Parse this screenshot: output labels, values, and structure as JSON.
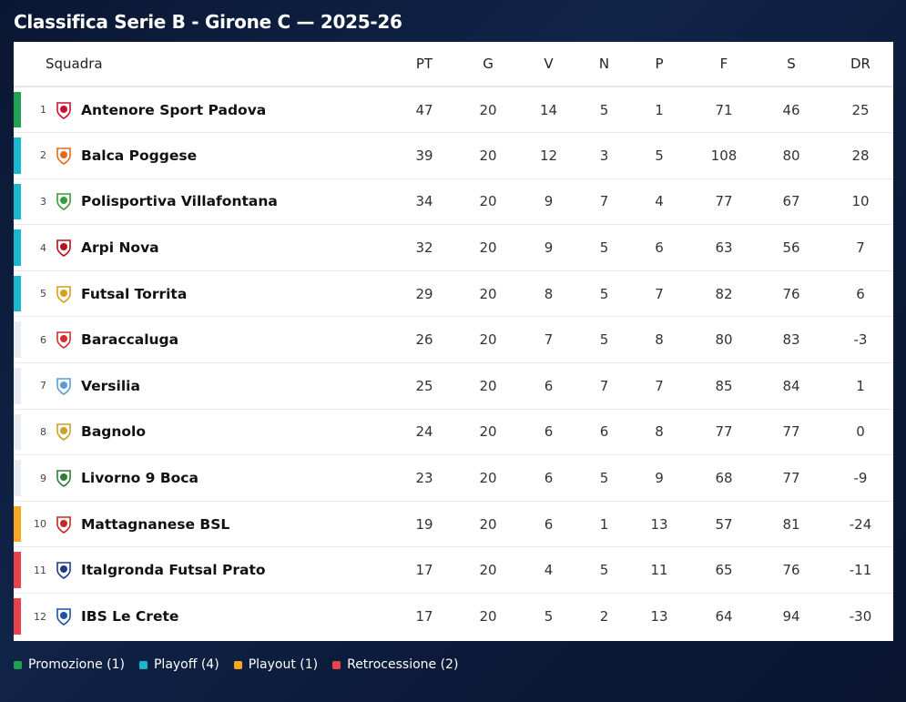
{
  "title": "Classifica Serie B - Girone C — 2025-26",
  "columns": {
    "team": "Squadra",
    "pt": "PT",
    "g": "G",
    "v": "V",
    "n": "N",
    "p": "P",
    "f": "F",
    "s": "S",
    "dr": "DR"
  },
  "zone_colors": {
    "promozione": "#1fa152",
    "playoff": "#1ab8cf",
    "playout": "#f5a623",
    "retrocessione": "#e8434a",
    "none": "#e8ecf1"
  },
  "rows": [
    {
      "pos": "1",
      "team": "Antenore Sport Padova",
      "pt": "47",
      "g": "20",
      "v": "14",
      "n": "5",
      "p": "1",
      "f": "71",
      "s": "46",
      "dr": "25",
      "zone": "promozione",
      "crest_color": "#c8102e",
      "crest_icon": "antenore-crest-icon"
    },
    {
      "pos": "2",
      "team": "Balca Poggese",
      "pt": "39",
      "g": "20",
      "v": "12",
      "n": "3",
      "p": "5",
      "f": "108",
      "s": "80",
      "dr": "28",
      "zone": "playoff",
      "crest_color": "#e06a1b",
      "crest_icon": "balca-crest-icon"
    },
    {
      "pos": "3",
      "team": "Polisportiva Villafontana",
      "pt": "34",
      "g": "20",
      "v": "9",
      "n": "7",
      "p": "4",
      "f": "77",
      "s": "67",
      "dr": "10",
      "zone": "playoff",
      "crest_color": "#3a9b3a",
      "crest_icon": "villafontana-crest-icon"
    },
    {
      "pos": "4",
      "team": "Arpi Nova",
      "pt": "32",
      "g": "20",
      "v": "9",
      "n": "5",
      "p": "6",
      "f": "63",
      "s": "56",
      "dr": "7",
      "zone": "playoff",
      "crest_color": "#b5121b",
      "crest_icon": "arpi-crest-icon"
    },
    {
      "pos": "5",
      "team": "Futsal Torrita",
      "pt": "29",
      "g": "20",
      "v": "8",
      "n": "5",
      "p": "7",
      "f": "82",
      "s": "76",
      "dr": "6",
      "zone": "playoff",
      "crest_color": "#d4a017",
      "crest_icon": "torrita-crest-icon"
    },
    {
      "pos": "6",
      "team": "Baraccaluga",
      "pt": "26",
      "g": "20",
      "v": "7",
      "n": "5",
      "p": "8",
      "f": "80",
      "s": "83",
      "dr": "-3",
      "zone": "none",
      "crest_color": "#d32f2f",
      "crest_icon": "baraccaluga-crest-icon"
    },
    {
      "pos": "7",
      "team": "Versilia",
      "pt": "25",
      "g": "20",
      "v": "6",
      "n": "7",
      "p": "7",
      "f": "85",
      "s": "84",
      "dr": "1",
      "zone": "none",
      "crest_color": "#5a9bd5",
      "crest_icon": "versilia-crest-icon"
    },
    {
      "pos": "8",
      "team": "Bagnolo",
      "pt": "24",
      "g": "20",
      "v": "6",
      "n": "6",
      "p": "8",
      "f": "77",
      "s": "77",
      "dr": "0",
      "zone": "none",
      "crest_color": "#c9a227",
      "crest_icon": "bagnolo-crest-icon"
    },
    {
      "pos": "9",
      "team": "Livorno 9 Boca",
      "pt": "23",
      "g": "20",
      "v": "6",
      "n": "5",
      "p": "9",
      "f": "68",
      "s": "77",
      "dr": "-9",
      "zone": "none",
      "crest_color": "#2e7d32",
      "crest_icon": "livorno-crest-icon"
    },
    {
      "pos": "10",
      "team": "Mattagnanese BSL",
      "pt": "19",
      "g": "20",
      "v": "6",
      "n": "1",
      "p": "13",
      "f": "57",
      "s": "81",
      "dr": "-24",
      "zone": "playout",
      "crest_color": "#c62828",
      "crest_icon": "mattagnanese-crest-icon"
    },
    {
      "pos": "11",
      "team": "Italgronda Futsal Prato",
      "pt": "17",
      "g": "20",
      "v": "4",
      "n": "5",
      "p": "11",
      "f": "65",
      "s": "76",
      "dr": "-11",
      "zone": "retrocessione",
      "crest_color": "#1e3a8a",
      "crest_icon": "italgronda-crest-icon"
    },
    {
      "pos": "12",
      "team": "IBS Le Crete",
      "pt": "17",
      "g": "20",
      "v": "5",
      "n": "2",
      "p": "13",
      "f": "64",
      "s": "94",
      "dr": "-30",
      "zone": "retrocessione",
      "crest_color": "#1f4fa8",
      "crest_icon": "ibs-crest-icon"
    }
  ],
  "legend": [
    {
      "key": "promozione",
      "label": "Promozione (1)"
    },
    {
      "key": "playoff",
      "label": "Playoff (4)"
    },
    {
      "key": "playout",
      "label": "Playout (1)"
    },
    {
      "key": "retrocessione",
      "label": "Retrocessione (2)"
    }
  ]
}
